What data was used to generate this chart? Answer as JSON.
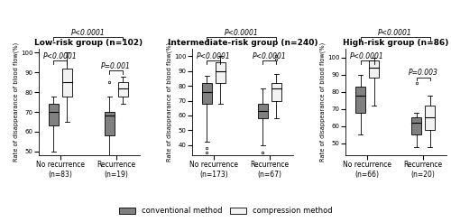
{
  "panels": [
    {
      "title": "Low-risk group (n=102)",
      "ylabel": "Rate of disappearance of blood flow(%)",
      "groups": [
        "No recurrence\n(n=83)",
        "Recurrence\n(n=19)"
      ],
      "conventional": {
        "no_rec": {
          "q1": 63,
          "median": 70,
          "q3": 74,
          "whisker_low": 50,
          "whisker_high": 78,
          "outliers_low": [],
          "outliers_high": []
        },
        "rec": {
          "q1": 58,
          "median": 68,
          "q3": 70,
          "whisker_low": 42,
          "whisker_high": 78,
          "outliers_low": [],
          "outliers_high": [
            85
          ]
        }
      },
      "compression": {
        "no_rec": {
          "q1": 78,
          "median": 85,
          "q3": 92,
          "whisker_low": 65,
          "whisker_high": 100,
          "outliers_low": [],
          "outliers_high": []
        },
        "rec": {
          "q1": 78,
          "median": 82,
          "q3": 85,
          "whisker_low": 74,
          "whisker_high": 88,
          "outliers_low": [],
          "outliers_high": []
        }
      },
      "ylim": [
        48,
        102
      ],
      "yticks": [
        50,
        60,
        70,
        80,
        90,
        100
      ],
      "p_between": "P<0.0001",
      "p_no_rec": "P<0.0001",
      "p_rec": "P=0.001"
    },
    {
      "title": "Intermediate-risk group (n=240)",
      "ylabel": "Rate of disappearance of blood flow(%)",
      "groups": [
        "No recurrence\n(n=173)",
        "Recurrence\n(n=67)"
      ],
      "conventional": {
        "no_rec": {
          "q1": 68,
          "median": 76,
          "q3": 82,
          "whisker_low": 42,
          "whisker_high": 87,
          "outliers_low": [
            35,
            38
          ],
          "outliers_high": []
        },
        "rec": {
          "q1": 58,
          "median": 63,
          "q3": 68,
          "whisker_low": 40,
          "whisker_high": 78,
          "outliers_low": [
            35
          ],
          "outliers_high": []
        }
      },
      "compression": {
        "no_rec": {
          "q1": 82,
          "median": 90,
          "q3": 96,
          "whisker_low": 68,
          "whisker_high": 100,
          "outliers_low": [],
          "outliers_high": []
        },
        "rec": {
          "q1": 70,
          "median": 78,
          "q3": 82,
          "whisker_low": 58,
          "whisker_high": 88,
          "outliers_low": [],
          "outliers_high": [
            98,
            100
          ]
        }
      },
      "ylim": [
        33,
        105
      ],
      "yticks": [
        40,
        50,
        60,
        70,
        80,
        90,
        100
      ],
      "p_between": "P<0.0001",
      "p_no_rec": "P<0.0001",
      "p_rec": "P<0.0001"
    },
    {
      "title": "High-risk group (n=86)",
      "ylabel": "Rate of disappearance of blood flow(%)",
      "groups": [
        "No recurrence\n(n=66)",
        "Recurrence\n(n=20)"
      ],
      "conventional": {
        "no_rec": {
          "q1": 68,
          "median": 78,
          "q3": 83,
          "whisker_low": 55,
          "whisker_high": 90,
          "outliers_low": [],
          "outliers_high": []
        },
        "rec": {
          "q1": 55,
          "median": 62,
          "q3": 65,
          "whisker_low": 48,
          "whisker_high": 68,
          "outliers_low": [],
          "outliers_high": [
            85
          ]
        }
      },
      "compression": {
        "no_rec": {
          "q1": 88,
          "median": 94,
          "q3": 98,
          "whisker_low": 72,
          "whisker_high": 100,
          "outliers_low": [],
          "outliers_high": []
        },
        "rec": {
          "q1": 58,
          "median": 65,
          "q3": 72,
          "whisker_low": 48,
          "whisker_high": 78,
          "outliers_low": [],
          "outliers_high": []
        }
      },
      "ylim": [
        43,
        105
      ],
      "yticks": [
        50,
        60,
        70,
        80,
        90,
        100
      ],
      "p_between": "P<0.0001",
      "p_no_rec": "P<0.0001",
      "p_rec": "P=0.003"
    }
  ],
  "conv_color": "#808080",
  "comp_color": "#f2f2f2",
  "box_width": 0.32,
  "legend_labels": [
    "conventional method",
    "compression method"
  ]
}
